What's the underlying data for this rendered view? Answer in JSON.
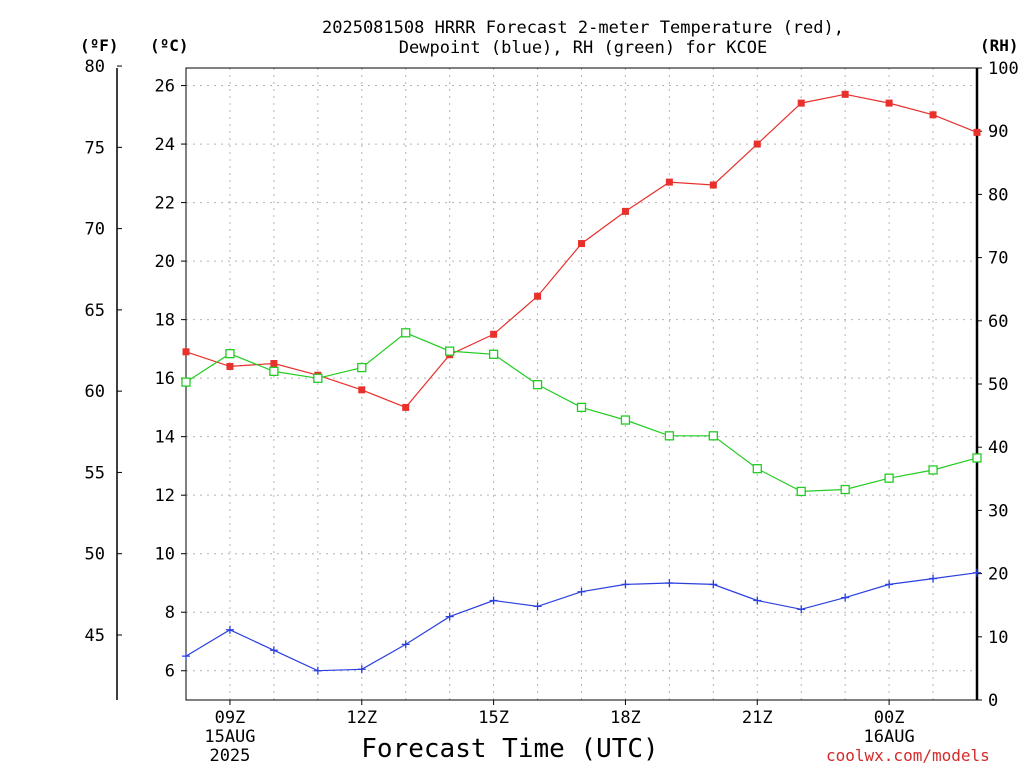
{
  "title": {
    "line1": "2025081508 HRRR Forecast 2-meter Temperature (red),",
    "line2": "Dewpoint (blue), RH (green) for KCOE"
  },
  "units": {
    "left_f": "(ºF)",
    "left_c": "(ºC)",
    "right_rh": "(RH)"
  },
  "xlabel": "Forecast Time (UTC)",
  "credit": "coolwx.com/models",
  "chart_data": {
    "type": "line",
    "title": "2025081508 HRRR Forecast 2-meter Temperature (red), Dewpoint (blue), RH (green) for KCOE",
    "xlabel": "Forecast Time (UTC)",
    "x": [
      "08Z",
      "09Z",
      "10Z",
      "11Z",
      "12Z",
      "13Z",
      "14Z",
      "15Z",
      "16Z",
      "17Z",
      "18Z",
      "19Z",
      "20Z",
      "21Z",
      "22Z",
      "23Z",
      "00Z",
      "01Z",
      "02Z"
    ],
    "xticks": [
      {
        "label": "09Z",
        "sub": [
          "15AUG",
          "2025"
        ]
      },
      {
        "label": "12Z",
        "sub": []
      },
      {
        "label": "15Z",
        "sub": []
      },
      {
        "label": "18Z",
        "sub": []
      },
      {
        "label": "21Z",
        "sub": []
      },
      {
        "label": "00Z",
        "sub": [
          "16AUG"
        ]
      }
    ],
    "ylim_c": [
      5,
      26.6
    ],
    "yticks_c": [
      6,
      8,
      10,
      12,
      14,
      16,
      18,
      20,
      22,
      24,
      26
    ],
    "yticks_f": [
      45,
      50,
      55,
      60,
      65,
      70,
      75,
      80
    ],
    "ylim_rh": [
      0,
      100
    ],
    "yticks_rh": [
      0,
      10,
      20,
      30,
      40,
      50,
      60,
      70,
      80,
      90,
      100
    ],
    "grid": true,
    "series": [
      {
        "key": "temperature",
        "axis": "c",
        "color": "#e8302c",
        "marker": "filled-square",
        "values": [
          16.9,
          16.4,
          16.5,
          16.1,
          15.6,
          15.0,
          16.8,
          17.5,
          18.8,
          20.6,
          21.7,
          22.7,
          22.6,
          24.0,
          25.4,
          25.7,
          25.4,
          25.0,
          24.4
        ]
      },
      {
        "key": "dewpoint",
        "axis": "c",
        "color": "#2a3fe0",
        "marker": "plus",
        "values": [
          6.5,
          7.4,
          6.7,
          6.0,
          6.05,
          6.9,
          7.85,
          8.4,
          8.2,
          8.7,
          8.95,
          9.0,
          8.95,
          8.4,
          8.1,
          8.5,
          8.95,
          9.15,
          9.35
        ]
      },
      {
        "key": "rh",
        "axis": "rh",
        "color": "#22cc22",
        "marker": "open-square",
        "values": [
          50.3,
          54.8,
          52.0,
          50.9,
          52.6,
          58.1,
          55.2,
          54.7,
          49.9,
          46.3,
          44.3,
          41.8,
          41.8,
          36.6,
          33.0,
          33.3,
          35.1,
          36.4,
          38.3
        ]
      }
    ]
  }
}
